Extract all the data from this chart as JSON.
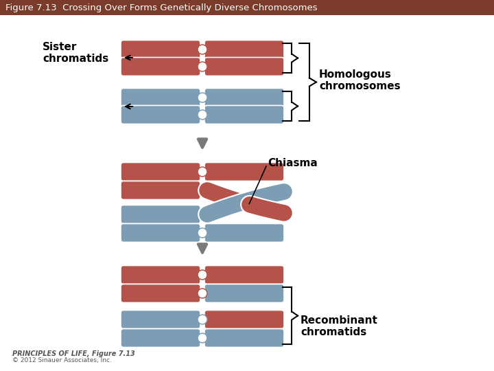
{
  "title": "Figure 7.13  Crossing Over Forms Genetically Diverse Chromosomes",
  "title_bg": "#7B3B2A",
  "title_color": "#FFFFFF",
  "bg_color": "#FFFFFF",
  "red_color": "#B5524A",
  "blue_color": "#7D9DB5",
  "arrow_color": "#7A7A7A",
  "label_sister": "Sister\nchromatids",
  "label_homologous": "Homologous\nchromosomes",
  "label_chiasma": "Chiasma",
  "label_recombinant": "Recombinant\nchromatids",
  "footer_bold": "PRINCIPLES OF LIFE, Figure 7.13",
  "footer_normal": "© 2012 Sinauer Associates, Inc."
}
